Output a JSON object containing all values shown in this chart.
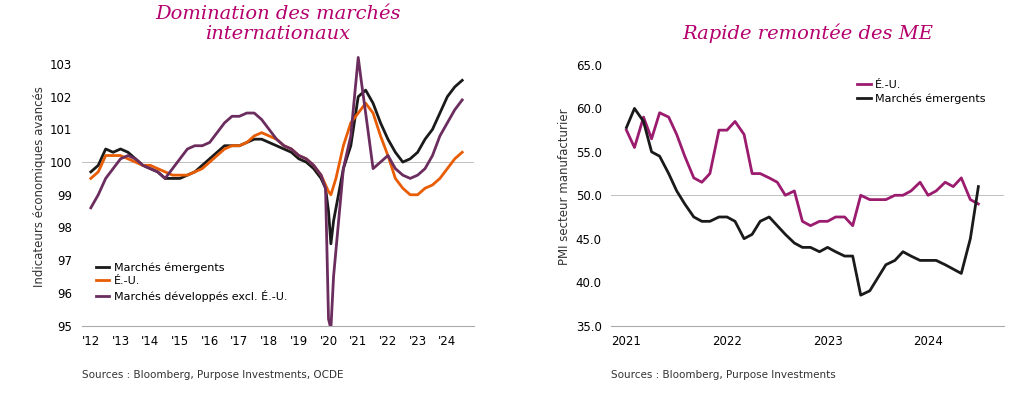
{
  "chart1": {
    "title": "Domination des marchés\ninternationaux",
    "ylabel": "Indicateurs économiques avancés",
    "source": "Sources : Bloomberg, Purpose Investments, OCDE",
    "title_color": "#b5006e",
    "ylim": [
      95,
      103.5
    ],
    "yticks": [
      95,
      96,
      97,
      98,
      99,
      100,
      101,
      102,
      103
    ],
    "hline": 100,
    "xtick_labels": [
      "'12",
      "'13",
      "'14",
      "'15",
      "'16",
      "'17",
      "'18",
      "'19",
      "'20",
      "'21",
      "'22",
      "'23",
      "'24"
    ],
    "series": {
      "emergents": {
        "label": "Marchés émergents",
        "color": "#1a1a1a",
        "lw": 2.0,
        "x": [
          2012.0,
          2012.25,
          2012.5,
          2012.75,
          2013.0,
          2013.25,
          2013.5,
          2013.75,
          2014.0,
          2014.25,
          2014.5,
          2014.75,
          2015.0,
          2015.25,
          2015.5,
          2015.75,
          2016.0,
          2016.25,
          2016.5,
          2016.75,
          2017.0,
          2017.25,
          2017.5,
          2017.75,
          2018.0,
          2018.25,
          2018.5,
          2018.75,
          2019.0,
          2019.25,
          2019.5,
          2019.75,
          2019.9,
          2020.0,
          2020.08,
          2020.17,
          2020.5,
          2020.75,
          2021.0,
          2021.25,
          2021.5,
          2021.75,
          2022.0,
          2022.25,
          2022.5,
          2022.75,
          2023.0,
          2023.25,
          2023.5,
          2023.75,
          2024.0,
          2024.25,
          2024.5
        ],
        "y": [
          99.7,
          99.9,
          100.4,
          100.3,
          100.4,
          100.3,
          100.1,
          99.9,
          99.8,
          99.7,
          99.5,
          99.5,
          99.5,
          99.6,
          99.7,
          99.9,
          100.1,
          100.3,
          100.5,
          100.5,
          100.5,
          100.6,
          100.7,
          100.7,
          100.6,
          100.5,
          100.4,
          100.3,
          100.1,
          100.0,
          99.8,
          99.5,
          99.2,
          98.5,
          97.5,
          98.2,
          99.8,
          100.5,
          102.0,
          102.2,
          101.8,
          101.2,
          100.7,
          100.3,
          100.0,
          100.1,
          100.3,
          100.7,
          101.0,
          101.5,
          102.0,
          102.3,
          102.5
        ]
      },
      "us": {
        "label": "É.-U.",
        "color": "#e85d04",
        "lw": 2.0,
        "x": [
          2012.0,
          2012.25,
          2012.5,
          2012.75,
          2013.0,
          2013.25,
          2013.5,
          2013.75,
          2014.0,
          2014.25,
          2014.5,
          2014.75,
          2015.0,
          2015.25,
          2015.5,
          2015.75,
          2016.0,
          2016.25,
          2016.5,
          2016.75,
          2017.0,
          2017.25,
          2017.5,
          2017.75,
          2018.0,
          2018.25,
          2018.5,
          2018.75,
          2019.0,
          2019.25,
          2019.5,
          2019.75,
          2019.9,
          2020.0,
          2020.08,
          2020.25,
          2020.5,
          2020.75,
          2021.0,
          2021.25,
          2021.5,
          2021.75,
          2022.0,
          2022.25,
          2022.5,
          2022.75,
          2023.0,
          2023.25,
          2023.5,
          2023.75,
          2024.0,
          2024.25,
          2024.5
        ],
        "y": [
          99.5,
          99.7,
          100.2,
          100.2,
          100.2,
          100.1,
          100.0,
          99.9,
          99.9,
          99.8,
          99.7,
          99.6,
          99.6,
          99.6,
          99.7,
          99.8,
          100.0,
          100.2,
          100.4,
          100.5,
          100.5,
          100.6,
          100.8,
          100.9,
          100.8,
          100.7,
          100.5,
          100.4,
          100.2,
          100.1,
          99.9,
          99.6,
          99.3,
          99.1,
          99.0,
          99.5,
          100.5,
          101.2,
          101.5,
          101.8,
          101.5,
          100.8,
          100.2,
          99.5,
          99.2,
          99.0,
          99.0,
          99.2,
          99.3,
          99.5,
          99.8,
          100.1,
          100.3
        ]
      },
      "dev_ex_us": {
        "label": "Marchés développés excl. É.-U.",
        "color": "#6b2d5e",
        "lw": 2.0,
        "x": [
          2012.0,
          2012.25,
          2012.5,
          2012.75,
          2013.0,
          2013.25,
          2013.5,
          2013.75,
          2014.0,
          2014.25,
          2014.5,
          2014.75,
          2015.0,
          2015.25,
          2015.5,
          2015.75,
          2016.0,
          2016.25,
          2016.5,
          2016.75,
          2017.0,
          2017.25,
          2017.5,
          2017.75,
          2018.0,
          2018.25,
          2018.5,
          2018.75,
          2019.0,
          2019.25,
          2019.5,
          2019.75,
          2019.9,
          2020.0,
          2020.08,
          2020.17,
          2020.5,
          2020.75,
          2021.0,
          2021.1,
          2021.25,
          2021.5,
          2021.75,
          2022.0,
          2022.25,
          2022.5,
          2022.75,
          2023.0,
          2023.25,
          2023.5,
          2023.75,
          2024.0,
          2024.25,
          2024.5
        ],
        "y": [
          98.6,
          99.0,
          99.5,
          99.8,
          100.1,
          100.2,
          100.1,
          99.9,
          99.8,
          99.7,
          99.5,
          99.8,
          100.1,
          100.4,
          100.5,
          100.5,
          100.6,
          100.9,
          101.2,
          101.4,
          101.4,
          101.5,
          101.5,
          101.3,
          101.0,
          100.7,
          100.5,
          100.4,
          100.2,
          100.1,
          99.9,
          99.6,
          99.2,
          95.2,
          94.9,
          96.5,
          99.8,
          100.8,
          103.2,
          102.5,
          101.5,
          99.8,
          100.0,
          100.2,
          99.8,
          99.6,
          99.5,
          99.6,
          99.8,
          100.2,
          100.8,
          101.2,
          101.6,
          101.9
        ]
      }
    }
  },
  "chart2": {
    "title": "Rapide remontée des ME",
    "ylabel": "PMI secteur manufacturier",
    "source": "Sources : Bloomberg, Purpose Investments",
    "title_color": "#b5006e",
    "ylim": [
      35,
      67
    ],
    "yticks": [
      35.0,
      40.0,
      45.0,
      50.0,
      55.0,
      60.0,
      65.0
    ],
    "hline": 50,
    "xtick_labels": [
      "2021",
      "2022",
      "2023",
      "2024"
    ],
    "xtick_positions": [
      2021,
      2022,
      2023,
      2024
    ],
    "series": {
      "us": {
        "label": "É.-U.",
        "color": "#9b1b6e",
        "lw": 2.0,
        "x": [
          2021.0,
          2021.08,
          2021.17,
          2021.25,
          2021.33,
          2021.42,
          2021.5,
          2021.58,
          2021.67,
          2021.75,
          2021.83,
          2021.92,
          2022.0,
          2022.08,
          2022.17,
          2022.25,
          2022.33,
          2022.42,
          2022.5,
          2022.58,
          2022.67,
          2022.75,
          2022.83,
          2022.92,
          2023.0,
          2023.08,
          2023.17,
          2023.25,
          2023.33,
          2023.42,
          2023.5,
          2023.58,
          2023.67,
          2023.75,
          2023.83,
          2023.92,
          2024.0,
          2024.08,
          2024.17,
          2024.25,
          2024.33,
          2024.42,
          2024.5
        ],
        "y": [
          57.5,
          55.5,
          59.0,
          56.5,
          59.5,
          59.0,
          57.0,
          54.5,
          52.0,
          51.5,
          52.5,
          57.5,
          57.5,
          58.5,
          57.0,
          52.5,
          52.5,
          52.0,
          51.5,
          50.0,
          50.5,
          47.0,
          46.5,
          47.0,
          47.0,
          47.5,
          47.5,
          46.5,
          50.0,
          49.5,
          49.5,
          49.5,
          50.0,
          50.0,
          50.5,
          51.5,
          50.0,
          50.5,
          51.5,
          51.0,
          52.0,
          49.5,
          49.0
        ]
      },
      "emergents": {
        "label": "Marchés émergents",
        "color": "#1a1a1a",
        "lw": 2.0,
        "x": [
          2021.0,
          2021.08,
          2021.17,
          2021.25,
          2021.33,
          2021.42,
          2021.5,
          2021.58,
          2021.67,
          2021.75,
          2021.83,
          2021.92,
          2022.0,
          2022.08,
          2022.17,
          2022.25,
          2022.33,
          2022.42,
          2022.5,
          2022.58,
          2022.67,
          2022.75,
          2022.83,
          2022.92,
          2023.0,
          2023.08,
          2023.17,
          2023.25,
          2023.33,
          2023.42,
          2023.5,
          2023.58,
          2023.67,
          2023.75,
          2023.83,
          2023.92,
          2024.0,
          2024.08,
          2024.17,
          2024.25,
          2024.33,
          2024.42,
          2024.5
        ],
        "y": [
          57.8,
          60.0,
          58.5,
          55.0,
          54.5,
          52.5,
          50.5,
          49.0,
          47.5,
          47.0,
          47.0,
          47.5,
          47.5,
          47.0,
          45.0,
          45.5,
          47.0,
          47.5,
          46.5,
          45.5,
          44.5,
          44.0,
          44.0,
          43.5,
          44.0,
          43.5,
          43.0,
          43.0,
          38.5,
          39.0,
          40.5,
          42.0,
          42.5,
          43.5,
          43.0,
          42.5,
          42.5,
          42.5,
          42.0,
          41.5,
          41.0,
          45.0,
          51.0
        ]
      }
    }
  }
}
